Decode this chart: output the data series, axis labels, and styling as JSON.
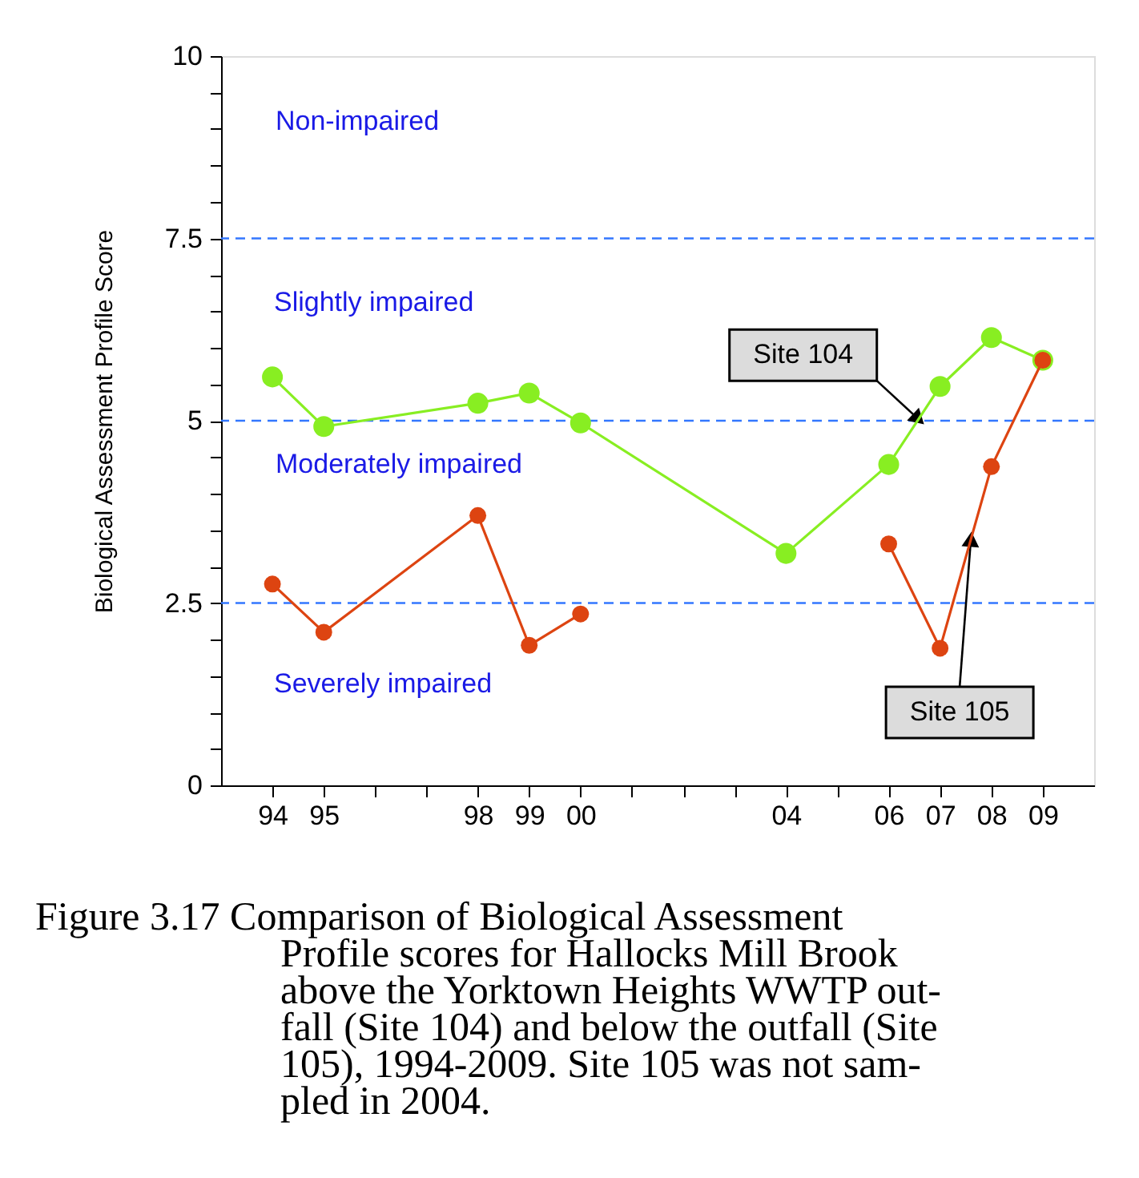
{
  "chart_data": {
    "type": "line",
    "ylabel": "Biological Assessment Profile Score",
    "x": [
      1994,
      1995,
      1998,
      1999,
      2000,
      2004,
      2006,
      2007,
      2008,
      2009
    ],
    "series": [
      {
        "name": "Site 104",
        "color": "#88ee22",
        "values": [
          5.6,
          4.92,
          5.24,
          5.38,
          4.97,
          3.18,
          4.4,
          5.47,
          6.14,
          5.83
        ]
      },
      {
        "name": "Site 105",
        "color": "#dd4411",
        "values": [
          2.76,
          2.1,
          3.7,
          1.92,
          2.35,
          null,
          3.31,
          1.88,
          4.37,
          5.83
        ]
      }
    ],
    "xlim": [
      1993,
      2010
    ],
    "xticks": [
      {
        "value": 1994,
        "label": "94"
      },
      {
        "value": 1995,
        "label": "95"
      },
      {
        "value": 1996,
        "label": null
      },
      {
        "value": 1997,
        "label": null
      },
      {
        "value": 1998,
        "label": "98"
      },
      {
        "value": 1999,
        "label": "99"
      },
      {
        "value": 2000,
        "label": "00"
      },
      {
        "value": 2001,
        "label": null
      },
      {
        "value": 2002,
        "label": null
      },
      {
        "value": 2003,
        "label": null
      },
      {
        "value": 2004,
        "label": "04"
      },
      {
        "value": 2005,
        "label": null
      },
      {
        "value": 2006,
        "label": "06"
      },
      {
        "value": 2007,
        "label": "07"
      },
      {
        "value": 2008,
        "label": "08"
      },
      {
        "value": 2009,
        "label": "09"
      }
    ],
    "ylim": [
      0,
      10
    ],
    "yticks": [
      0,
      {
        "value": 0.5,
        "label": null
      },
      {
        "value": 1,
        "label": null
      },
      {
        "value": 1.5,
        "label": null
      },
      {
        "value": 2,
        "label": null
      },
      2.5,
      {
        "value": 3,
        "label": null
      },
      {
        "value": 3.5,
        "label": null
      },
      {
        "value": 4,
        "label": null
      },
      {
        "value": 4.5,
        "label": null
      },
      5,
      {
        "value": 5.5,
        "label": null
      },
      {
        "value": 6,
        "label": null
      },
      {
        "value": 6.5,
        "label": null
      },
      {
        "value": 7,
        "label": null
      },
      7.5,
      {
        "value": 8,
        "label": null
      },
      {
        "value": 8.5,
        "label": null
      },
      {
        "value": 9,
        "label": null
      },
      {
        "value": 9.5,
        "label": null
      },
      10
    ],
    "ref_lines": [
      {
        "axis": "y",
        "value": 2.5,
        "color": "#3377ff",
        "line_style": "dashed"
      },
      {
        "axis": "y",
        "value": 5,
        "color": "#3377ff",
        "line_style": "dashed"
      },
      {
        "axis": "y",
        "value": 7.5,
        "color": "#3377ff",
        "line_style": "dashed"
      }
    ],
    "annotations": [
      "Non-impaired",
      "Slightly impaired",
      "Moderately impaired",
      "Severely impaired",
      "Figure 3.17  Comparison of Biological Assessment\nProfile scores for Hallocks Mill Brook\nabove the Yorktown Heights WWTP out-\nfall (Site 104) and below the outfall (Site\n105), 1994-2009. Site 105 was not sam-\npled in 2004."
    ],
    "grid": false,
    "legend": false,
    "marker": "circle",
    "line_style": "solid"
  }
}
